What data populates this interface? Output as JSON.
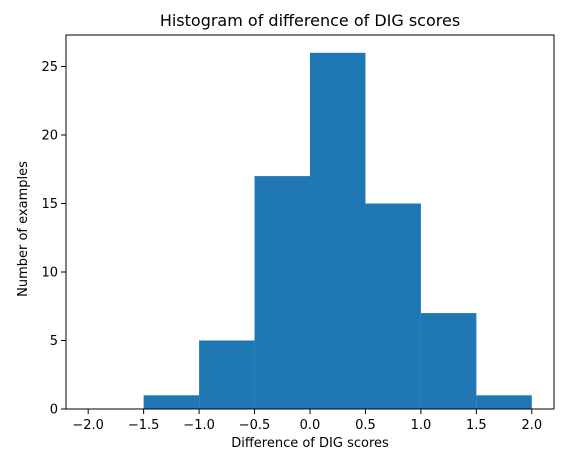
{
  "chart_data": {
    "type": "bar",
    "title": "Histogram of difference of DIG  scores",
    "xlabel": "Difference of DIG scores",
    "ylabel": "Number of examples",
    "x_ticks": [
      "−2.0",
      "−1.5",
      "−1.0",
      "−0.5",
      "0.0",
      "0.5",
      "1.0",
      "1.5",
      "2.0"
    ],
    "y_ticks": [
      "0",
      "5",
      "10",
      "15",
      "20",
      "25"
    ],
    "bins": [
      {
        "start": -1.5,
        "end": -1.0,
        "value": 1
      },
      {
        "start": -1.0,
        "end": -0.5,
        "value": 5
      },
      {
        "start": -0.5,
        "end": 0.0,
        "value": 17
      },
      {
        "start": 0.0,
        "end": 0.5,
        "value": 26
      },
      {
        "start": 0.5,
        "end": 1.0,
        "value": 15
      },
      {
        "start": 1.0,
        "end": 1.5,
        "value": 7
      },
      {
        "start": 1.5,
        "end": 2.0,
        "value": 1
      }
    ],
    "xlim": [
      -2.2,
      2.2
    ],
    "ylim": [
      0,
      27.3
    ],
    "bar_color": "#1f77b4",
    "grid": false
  }
}
